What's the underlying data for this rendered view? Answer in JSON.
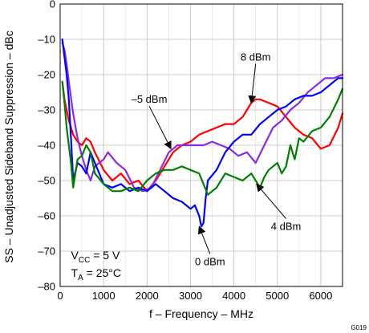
{
  "chart_data": {
    "type": "line",
    "xlabel": "f – Frequency – MHz",
    "ylabel": "SS – Unadjusted Sideband Suppression – dBc",
    "xlim": [
      0,
      6500
    ],
    "ylim": [
      -80,
      0
    ],
    "xticks": [
      0,
      1000,
      2000,
      3000,
      4000,
      5000,
      6000
    ],
    "yticks": [
      0,
      -10,
      -20,
      -30,
      -40,
      -50,
      -60,
      -70,
      -80
    ],
    "grid": true,
    "conditions": {
      "vcc_main": "V",
      "vcc_sub": "CC",
      "vcc_value": " = 5 V",
      "ta_main": "T",
      "ta_sub": "A",
      "ta_value": " = 25°C"
    },
    "figure_id": "G019",
    "series": [
      {
        "name": "8 dBm",
        "color": "#ff0000",
        "x": [
          50,
          100,
          150,
          200,
          250,
          300,
          400,
          500,
          600,
          700,
          800,
          1000,
          1200,
          1400,
          1600,
          1800,
          2000,
          2200,
          2400,
          2600,
          2800,
          3000,
          3200,
          3400,
          3600,
          3800,
          4000,
          4200,
          4300,
          4400,
          4500,
          4600,
          4800,
          5000,
          5200,
          5400,
          5600,
          5800,
          6000,
          6200,
          6400,
          6500
        ],
        "y": [
          -22,
          -27,
          -30,
          -33,
          -35,
          -37,
          -39,
          -40,
          -38,
          -39,
          -42,
          -47,
          -50,
          -48,
          -51,
          -50,
          -53,
          -50,
          -46,
          -42,
          -40,
          -39,
          -37,
          -36,
          -35,
          -34,
          -34,
          -32,
          -30,
          -28,
          -27,
          -27,
          -28,
          -29,
          -32,
          -35,
          -37,
          -38,
          -41,
          -40,
          -35,
          -31
        ]
      },
      {
        "name": "-5 dBm",
        "color": "#8a2be2",
        "x": [
          50,
          100,
          150,
          200,
          300,
          400,
          500,
          600,
          700,
          800,
          900,
          1000,
          1100,
          1300,
          1500,
          1700,
          1900,
          2100,
          2300,
          2500,
          2700,
          2900,
          3100,
          3300,
          3500,
          3700,
          3900,
          4100,
          4300,
          4500,
          4700,
          4900,
          5100,
          5300,
          5500,
          5700,
          5900,
          6100,
          6300,
          6500
        ],
        "y": [
          -11,
          -13,
          -17,
          -22,
          -31,
          -38,
          -43,
          -47,
          -50,
          -46,
          -45,
          -44,
          -42,
          -45,
          -47,
          -52,
          -53,
          -52,
          -47,
          -42,
          -40,
          -40,
          -40,
          -40,
          -39,
          -40,
          -41,
          -43,
          -42,
          -45,
          -40,
          -35,
          -33,
          -30,
          -28,
          -25,
          -23,
          -21,
          -21,
          -20
        ]
      },
      {
        "name": "0 dBm",
        "color": "#0000ff",
        "x": [
          50,
          100,
          150,
          200,
          250,
          300,
          400,
          500,
          600,
          700,
          800,
          1000,
          1200,
          1400,
          1600,
          1800,
          2000,
          2200,
          2400,
          2600,
          2800,
          3000,
          3100,
          3200,
          3250,
          3300,
          3350,
          3400,
          3600,
          3800,
          4000,
          4200,
          4400,
          4600,
          4800,
          5000,
          5200,
          5400,
          5600,
          5800,
          6000,
          6200,
          6400,
          6500
        ],
        "y": [
          -10,
          -15,
          -20,
          -27,
          -38,
          -50,
          -45,
          -46,
          -48,
          -42,
          -45,
          -51,
          -52,
          -51,
          -53,
          -52,
          -53,
          -51,
          -53,
          -55,
          -56,
          -58,
          -57,
          -60,
          -63,
          -62,
          -55,
          -50,
          -47,
          -42,
          -39,
          -37,
          -37,
          -34,
          -32,
          -30,
          -29,
          -27,
          -26,
          -26,
          -25,
          -23,
          -21,
          -21
        ]
      },
      {
        "name": "4 dBm",
        "color": "#008000",
        "x": [
          50,
          100,
          150,
          200,
          250,
          300,
          400,
          500,
          600,
          700,
          800,
          1000,
          1200,
          1400,
          1600,
          1800,
          2000,
          2200,
          2400,
          2600,
          2800,
          3000,
          3200,
          3400,
          3600,
          3800,
          4000,
          4200,
          4400,
          4600,
          4700,
          4800,
          5000,
          5100,
          5200,
          5300,
          5400,
          5500,
          5600,
          5800,
          6000,
          6200,
          6400,
          6500
        ],
        "y": [
          -22,
          -28,
          -35,
          -40,
          -45,
          -52,
          -44,
          -43,
          -40,
          -42,
          -48,
          -51,
          -53,
          -53,
          -52,
          -53,
          -50,
          -48,
          -47,
          -47,
          -46,
          -47,
          -48,
          -54,
          -52,
          -48,
          -49,
          -50,
          -48,
          -52,
          -49,
          -47,
          -45,
          -48,
          -46,
          -40,
          -44,
          -38,
          -39,
          -36,
          -35,
          -32,
          -27,
          -24
        ]
      }
    ],
    "annotations": [
      {
        "text": "8 dBm",
        "series": "8 dBm",
        "arrow_to": [
          4400,
          -28
        ],
        "text_at": [
          4500,
          -16
        ]
      },
      {
        "text": "–5 dBm",
        "series": "-5 dBm",
        "arrow_to": [
          2550,
          -41
        ],
        "text_at": [
          2050,
          -28
        ]
      },
      {
        "text": "0 dBm",
        "series": "0 dBm",
        "arrow_to": [
          3200,
          -63
        ],
        "text_at": [
          3450,
          -74
        ]
      },
      {
        "text": "4 dBm",
        "series": "4 dBm",
        "arrow_to": [
          4520,
          -51
        ],
        "text_at": [
          5200,
          -64
        ]
      }
    ]
  }
}
